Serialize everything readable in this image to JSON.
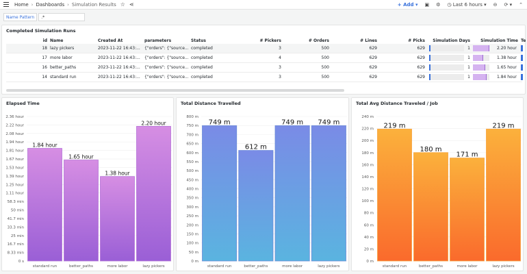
{
  "topbar": {
    "breadcrumb": [
      "Home",
      "Dashboards",
      "Simulation Results"
    ],
    "add_label": "Add",
    "time_range": "Last 6 hours"
  },
  "variables": {
    "name_pattern_label": "Name Pattern",
    "name_pattern_value": ".*"
  },
  "table": {
    "title": "Completed Simulation Runs",
    "columns": [
      "id",
      "Name",
      "Created At",
      "parameters",
      "Status",
      "# Pickers",
      "# Orders",
      "# Lines",
      "# Picks",
      "Simulation Days",
      "Simulation Time",
      "Te"
    ],
    "rows": [
      {
        "id": "18",
        "name": "lazy pickers",
        "created": "2023-11-22 16:43:...",
        "params": "{\"orders\": {\"source...",
        "status": "completed",
        "pickers": "3",
        "orders": "500",
        "lines": "629",
        "picks": "629",
        "days": "1",
        "simtime": "2.20 hour",
        "simtime_frac": 1.0
      },
      {
        "id": "17",
        "name": "more labor",
        "created": "2023-11-22 16:43:...",
        "params": "{\"orders\": {\"source...",
        "status": "completed",
        "pickers": "4",
        "orders": "500",
        "lines": "629",
        "picks": "629",
        "days": "1",
        "simtime": "1.38 hour",
        "simtime_frac": 0.63
      },
      {
        "id": "16",
        "name": "better_paths",
        "created": "2023-11-22 16:43:...",
        "params": "{\"orders\": {\"source...",
        "status": "completed",
        "pickers": "3",
        "orders": "500",
        "lines": "629",
        "picks": "629",
        "days": "1",
        "simtime": "1.65 hour",
        "simtime_frac": 0.75
      },
      {
        "id": "14",
        "name": "standard run",
        "created": "2023-11-22 16:43:...",
        "params": "{\"orders\": {\"source...",
        "status": "completed",
        "pickers": "3",
        "orders": "500",
        "lines": "629",
        "picks": "629",
        "days": "1",
        "simtime": "1.84 hour",
        "simtime_frac": 0.84
      }
    ]
  },
  "chart_data": [
    {
      "type": "bar",
      "title": "Elapsed Time",
      "categories": [
        "standard run",
        "better_paths",
        "more labor",
        "lazy pickers"
      ],
      "values": [
        1.84,
        1.65,
        1.38,
        2.2
      ],
      "value_labels": [
        "1.84 hour",
        "1.65 hour",
        "1.38 hour",
        "2.20 hour"
      ],
      "yticks": [
        "0 s",
        "8.33 min",
        "16.7 min",
        "25 min",
        "33.3 min",
        "41.7 min",
        "50 min",
        "58.3 min",
        "1.11 hour",
        "1.25 hour",
        "1.39 hour",
        "1.53 hour",
        "1.67 hour",
        "1.81 hour",
        "1.94 hour",
        "2.08 hour",
        "2.22 hour",
        "2.36 hour"
      ],
      "ylim": [
        0,
        2.3611
      ],
      "gradient": [
        "#9a5fd6",
        "#d68ee3"
      ],
      "bar_stroke": "#b572d8",
      "label_size": 7.5
    },
    {
      "type": "bar",
      "title": "Total Distance Travelled",
      "categories": [
        "standard run",
        "better_paths",
        "more labor",
        "lazy pickers"
      ],
      "values": [
        749,
        612,
        749,
        749
      ],
      "value_labels": [
        "749 m",
        "612 m",
        "749 m",
        "749 m"
      ],
      "yticks": [
        "0 m",
        "50 m",
        "100 m",
        "150 m",
        "200 m",
        "250 m",
        "300 m",
        "350 m",
        "400 m",
        "450 m",
        "500 m",
        "550 m",
        "600 m",
        "650 m",
        "700 m",
        "750 m",
        "800 m"
      ],
      "ylim": [
        0,
        800
      ],
      "gradient": [
        "#5ab4e0",
        "#7a8be6"
      ],
      "bar_stroke": "#6a8ad8",
      "label_size": 10
    },
    {
      "type": "bar",
      "title": "Total Avg Distance Traveled / Job",
      "categories": [
        "standard run",
        "better_paths",
        "more labor",
        "lazy pickers"
      ],
      "values": [
        219,
        180,
        171,
        219
      ],
      "value_labels": [
        "219 m",
        "180 m",
        "171 m",
        "219 m"
      ],
      "yticks": [
        "0 m",
        "20 m",
        "40 m",
        "60 m",
        "80 m",
        "100 m",
        "120 m",
        "140 m",
        "160 m",
        "180 m",
        "200 m",
        "220 m",
        "240 m"
      ],
      "ylim": [
        0,
        240
      ],
      "gradient": [
        "#fa6a2c",
        "#fbb13c"
      ],
      "bar_stroke": "#f7a23a",
      "label_size": 10
    }
  ]
}
